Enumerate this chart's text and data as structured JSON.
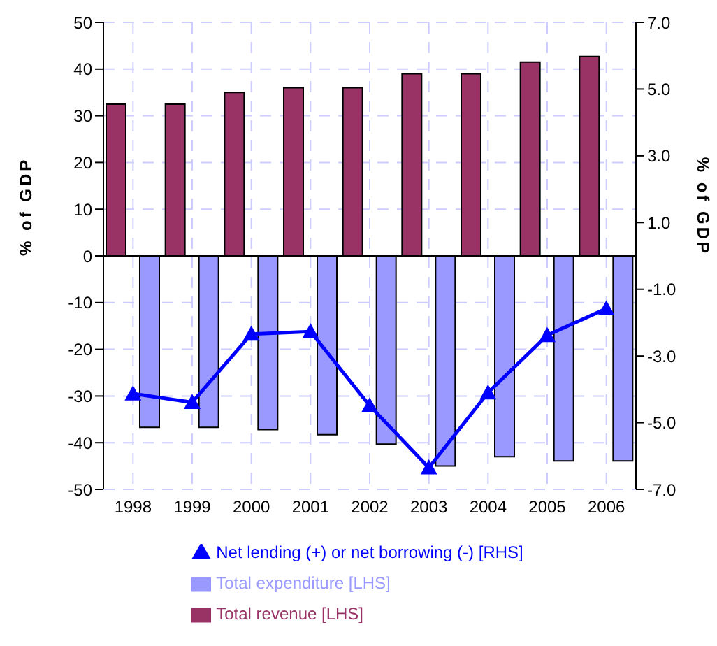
{
  "chart_data": {
    "type": "bar",
    "ylabel": "% of GDP",
    "y2label": "% of GDP",
    "categories": [
      "1998",
      "1999",
      "2000",
      "2001",
      "2002",
      "2003",
      "2004",
      "2005",
      "2006"
    ],
    "series": [
      {
        "name": "Total revenue [LHS]",
        "color": "#993366",
        "values": [
          32.5,
          32.5,
          35,
          36,
          36,
          39,
          39,
          41.5,
          42.7
        ]
      },
      {
        "name": "Total expenditure [LHS]",
        "color": "#9999ff",
        "values": [
          -36.7,
          -36.7,
          -37.2,
          -38.3,
          -40.3,
          -45,
          -43,
          -43.9,
          -43.9
        ]
      },
      {
        "name": "Net lending (+) or net borrowing (-) [RHS]",
        "type": "line",
        "axis": "y2",
        "color": "#0000ff",
        "marker": "triangle",
        "values": [
          -4.13,
          -4.39,
          -2.34,
          -2.27,
          -4.49,
          -6.35,
          -4.1,
          -2.38,
          -1.58
        ]
      }
    ],
    "ylim": [
      -50,
      50
    ],
    "yticks": [
      -50,
      -40,
      -30,
      -20,
      -10,
      0,
      10,
      20,
      30,
      40,
      50
    ],
    "y2lim": [
      -7,
      7
    ],
    "y2ticks": [
      {
        "value": -7,
        "label": "-7.0"
      },
      {
        "value": -5,
        "label": "-5.0"
      },
      {
        "value": -3,
        "label": "-3.0"
      },
      {
        "value": -1,
        "label": "-1.0"
      },
      {
        "value": 1,
        "label": "1.0"
      },
      {
        "value": 3,
        "label": "3.0"
      },
      {
        "value": 5,
        "label": "5.0"
      },
      {
        "value": 7,
        "label": "7.0"
      }
    ],
    "grid": true,
    "legend": "bottom"
  }
}
